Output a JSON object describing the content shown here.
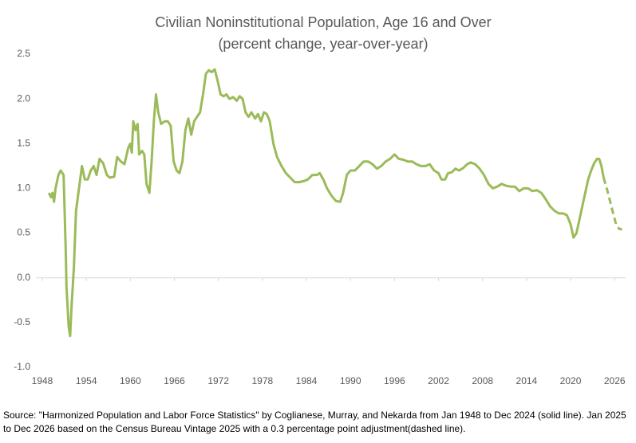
{
  "chart_data": {
    "type": "line",
    "title": "Civilian Noninstitutional Population, Age 16 and Over",
    "subtitle": "(percent change, year-over-year)",
    "source": "Source: \"Harmonized Population and Labor Force Statistics\" by Coglianese, Murray, and Nekarda from Jan 1948 to Dec 2024 (solid line). Jan 2025 to Dec 2026 based on the Census Bureau Vintage 2025 with a 0.3 percentage point adjustment(dashed line).",
    "xlim": [
      1948,
      2027.5
    ],
    "ylim": [
      -1.0,
      2.5
    ],
    "xticks": [
      1948,
      1954,
      1960,
      1966,
      1972,
      1978,
      1984,
      1990,
      1996,
      2002,
      2008,
      2014,
      2020,
      2026
    ],
    "yticks": [
      {
        "value": -1,
        "label": "-1.0"
      },
      {
        "value": -0.5,
        "label": "-0.5"
      },
      {
        "value": 0,
        "label": "0.0"
      },
      {
        "value": 0.5,
        "label": "0.5"
      },
      {
        "value": 1,
        "label": "1.0"
      },
      {
        "value": 1.5,
        "label": "1.5"
      },
      {
        "value": 2,
        "label": "2.0"
      },
      {
        "value": 2.5,
        "label": "2.5"
      }
    ],
    "grid": false,
    "series": [
      {
        "color": "#9bbb59",
        "style": "solid",
        "x": [
          1948.9,
          1949.2,
          1949.4,
          1949.6,
          1949.8,
          1950.2,
          1950.5,
          1950.9,
          1951.2,
          1951.3,
          1951.6,
          1951.8,
          1952.0,
          1952.3,
          1952.6,
          1953.0,
          1953.4,
          1953.8,
          1954.2,
          1954.6,
          1955.0,
          1955.4,
          1955.8,
          1956.3,
          1956.8,
          1957.2,
          1957.8,
          1958.2,
          1958.7,
          1959.2,
          1959.7,
          1960.0,
          1960.2,
          1960.4,
          1960.7,
          1961.0,
          1961.2,
          1961.6,
          1961.9,
          1962.2,
          1962.6,
          1962.9,
          1963.2,
          1963.5,
          1963.8,
          1964.2,
          1964.7,
          1965.1,
          1965.5,
          1965.9,
          1966.3,
          1966.7,
          1967.1,
          1967.5,
          1967.9,
          1968.3,
          1968.7,
          1969.1,
          1969.5,
          1969.9,
          1970.3,
          1970.7,
          1971.1,
          1971.5,
          1971.9,
          1972.3,
          1972.7,
          1973.1,
          1973.5,
          1974.0,
          1974.5,
          1974.9,
          1975.3,
          1975.7,
          1976.1,
          1976.5,
          1977.0,
          1977.4,
          1977.8,
          1978.2,
          1978.6,
          1979.0,
          1979.5,
          1980.0,
          1980.6,
          1981.2,
          1981.8,
          1982.4,
          1983.0,
          1983.6,
          1984.2,
          1984.8,
          1985.4,
          1985.8,
          1986.3,
          1986.8,
          1987.4,
          1988.0,
          1988.6,
          1989.0,
          1989.5,
          1990.0,
          1990.6,
          1991.2,
          1991.8,
          1992.4,
          1993.0,
          1993.6,
          1994.2,
          1994.8,
          1995.4,
          1996.0,
          1996.6,
          1997.2,
          1997.8,
          1998.4,
          1999.0,
          1999.6,
          2000.2,
          2000.8,
          2001.4,
          2002.0,
          2002.4,
          2002.9,
          2003.3,
          2003.8,
          2004.3,
          2004.8,
          2005.4,
          2005.9,
          2006.4,
          2007.0,
          2007.6,
          2008.2,
          2008.8,
          2009.4,
          2010.0,
          2010.6,
          2011.2,
          2011.8,
          2012.4,
          2013.0,
          2013.6,
          2014.2,
          2014.8,
          2015.4,
          2016.0,
          2016.6,
          2017.2,
          2017.8,
          2018.4,
          2019.0,
          2019.5,
          2020.0,
          2020.4,
          2020.8,
          2021.2,
          2021.6,
          2022.0,
          2022.4,
          2022.8,
          2023.2,
          2023.6,
          2023.9,
          2024.2,
          2024.5
        ],
        "values": [
          0.95,
          0.9,
          0.95,
          0.85,
          1.0,
          1.15,
          1.2,
          1.15,
          0.3,
          -0.1,
          -0.55,
          -0.65,
          -0.3,
          0.1,
          0.75,
          1.0,
          1.25,
          1.1,
          1.1,
          1.2,
          1.25,
          1.15,
          1.33,
          1.28,
          1.15,
          1.12,
          1.13,
          1.35,
          1.3,
          1.27,
          1.45,
          1.5,
          1.4,
          1.75,
          1.65,
          1.72,
          1.38,
          1.42,
          1.38,
          1.05,
          0.95,
          1.3,
          1.75,
          2.05,
          1.85,
          1.72,
          1.75,
          1.75,
          1.7,
          1.3,
          1.2,
          1.17,
          1.3,
          1.65,
          1.78,
          1.6,
          1.75,
          1.8,
          1.85,
          2.05,
          2.28,
          2.32,
          2.3,
          2.33,
          2.2,
          2.05,
          2.03,
          2.05,
          2.0,
          2.02,
          1.98,
          2.03,
          2.0,
          1.85,
          1.8,
          1.85,
          1.78,
          1.83,
          1.75,
          1.85,
          1.83,
          1.75,
          1.5,
          1.35,
          1.25,
          1.17,
          1.12,
          1.07,
          1.07,
          1.08,
          1.1,
          1.15,
          1.15,
          1.17,
          1.1,
          1.0,
          0.92,
          0.86,
          0.85,
          0.95,
          1.15,
          1.2,
          1.2,
          1.25,
          1.3,
          1.3,
          1.27,
          1.22,
          1.25,
          1.3,
          1.33,
          1.38,
          1.33,
          1.32,
          1.3,
          1.3,
          1.27,
          1.25,
          1.25,
          1.27,
          1.2,
          1.17,
          1.1,
          1.1,
          1.17,
          1.18,
          1.22,
          1.2,
          1.23,
          1.27,
          1.29,
          1.27,
          1.22,
          1.15,
          1.05,
          1.0,
          1.02,
          1.05,
          1.03,
          1.02,
          1.02,
          0.97,
          1.0,
          1.0,
          0.97,
          0.98,
          0.95,
          0.88,
          0.8,
          0.75,
          0.72,
          0.72,
          0.7,
          0.6,
          0.45,
          0.5,
          0.65,
          0.8,
          0.95,
          1.1,
          1.2,
          1.28,
          1.33,
          1.33,
          1.25,
          1.12
        ]
      },
      {
        "color": "#9bbb59",
        "style": "dashed",
        "x": [
          2024.5,
          2025.0,
          2025.4,
          2025.8,
          2026.2,
          2026.6,
          2027.0
        ],
        "values": [
          1.12,
          0.98,
          0.85,
          0.72,
          0.6,
          0.55,
          0.54
        ]
      }
    ]
  }
}
